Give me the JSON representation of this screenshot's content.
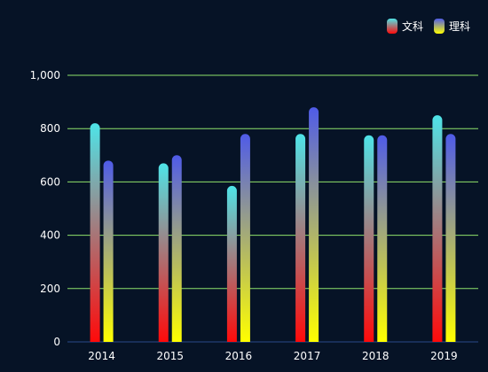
{
  "chart_data": {
    "type": "bar",
    "categories": [
      "2014",
      "2015",
      "2016",
      "2017",
      "2018",
      "2019"
    ],
    "series": [
      {
        "name": "文科",
        "values": [
          820,
          670,
          585,
          780,
          775,
          850
        ],
        "gradient": {
          "top": "#4ee4e8",
          "bottom": "#ff0a0a"
        }
      },
      {
        "name": "理科",
        "values": [
          680,
          700,
          780,
          880,
          775,
          780
        ],
        "gradient": {
          "top": "#4f5be8",
          "bottom": "#ffff00"
        }
      }
    ],
    "y_ticks": [
      "0",
      "200",
      "400",
      "600",
      "800",
      "1,000"
    ],
    "ylim": [
      0,
      1000
    ],
    "grid": true,
    "legend_position": "top-right",
    "colors": {
      "background": "#061326",
      "grid": "#8fe36b",
      "axis": "#2a4a8a",
      "text": "#ffffff"
    }
  }
}
